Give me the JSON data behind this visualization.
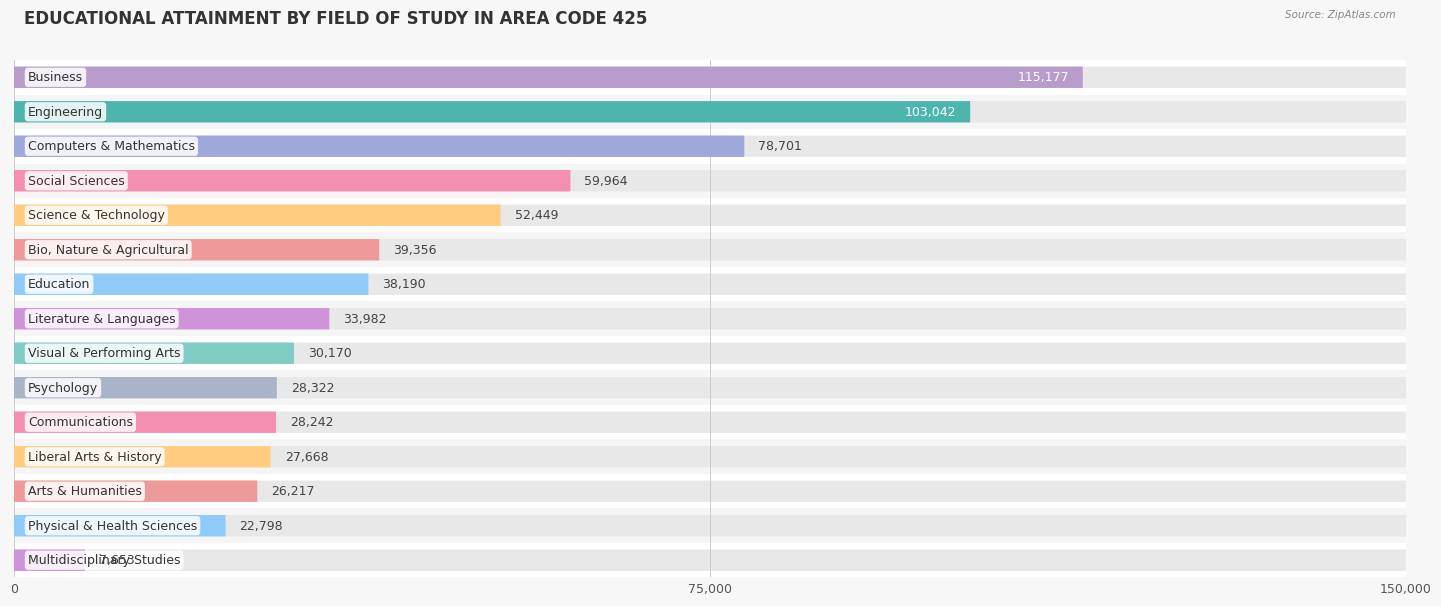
{
  "title": "EDUCATIONAL ATTAINMENT BY FIELD OF STUDY IN AREA CODE 425",
  "source": "Source: ZipAtlas.com",
  "categories": [
    "Business",
    "Engineering",
    "Computers & Mathematics",
    "Social Sciences",
    "Science & Technology",
    "Bio, Nature & Agricultural",
    "Education",
    "Literature & Languages",
    "Visual & Performing Arts",
    "Psychology",
    "Communications",
    "Liberal Arts & History",
    "Arts & Humanities",
    "Physical & Health Sciences",
    "Multidisciplinary Studies"
  ],
  "values": [
    115177,
    103042,
    78701,
    59964,
    52449,
    39356,
    38190,
    33982,
    30170,
    28322,
    28242,
    27668,
    26217,
    22798,
    7653
  ],
  "bar_colors": [
    "#b89dcc",
    "#4db6ac",
    "#9fa8da",
    "#f48fb1",
    "#ffcc80",
    "#ef9a9a",
    "#90caf9",
    "#ce93d8",
    "#80cbc4",
    "#aab4c8",
    "#f48fb1",
    "#ffcc80",
    "#ef9a9a",
    "#90caf9",
    "#ce93d8"
  ],
  "value_inside": [
    true,
    true,
    false,
    false,
    false,
    false,
    false,
    false,
    false,
    false,
    false,
    false,
    false,
    false,
    false
  ],
  "xlim": [
    0,
    150000
  ],
  "xticks": [
    0,
    75000,
    150000
  ],
  "xtick_labels": [
    "0",
    "75,000",
    "150,000"
  ],
  "background_color": "#f7f7f7",
  "bar_bg_color": "#e8e8e8",
  "row_bg_color": "#f0f0f0",
  "title_fontsize": 12,
  "bar_height": 0.62,
  "label_fontsize": 9,
  "value_fontsize": 9
}
